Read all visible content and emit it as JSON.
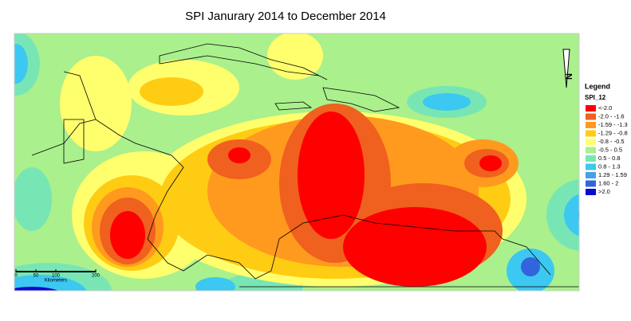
{
  "title": "SPI Janurary 2014   to December 2014",
  "legend": {
    "heading": "Legend",
    "field": "SPI_12",
    "items": [
      {
        "label": "<-2.0",
        "color": "#ff0000"
      },
      {
        "label": "-2.0 - -1.6",
        "color": "#f0601e"
      },
      {
        "label": "-1.59 - -1.3",
        "color": "#ff9a1e"
      },
      {
        "label": "-1.29 - -0.8",
        "color": "#ffcc14"
      },
      {
        "label": "-0.8 - -0.5",
        "color": "#ffff6e"
      },
      {
        "label": "-0.5 - 0.5",
        "color": "#aaf08c"
      },
      {
        "label": "0.5 - 0.8",
        "color": "#78e6b4"
      },
      {
        "label": "0.8 - 1.3",
        "color": "#3cc8f0"
      },
      {
        "label": "1.29 - 1.59",
        "color": "#46a0e6"
      },
      {
        "label": "1.60 - 2",
        "color": "#3264dc"
      },
      {
        "label": ">2.0",
        "color": "#0a0ad2"
      }
    ]
  },
  "scale_bar": {
    "ticks": [
      "0",
      "50",
      "100",
      "200"
    ],
    "unit": "Kilometers"
  },
  "north_arrow": "N"
}
